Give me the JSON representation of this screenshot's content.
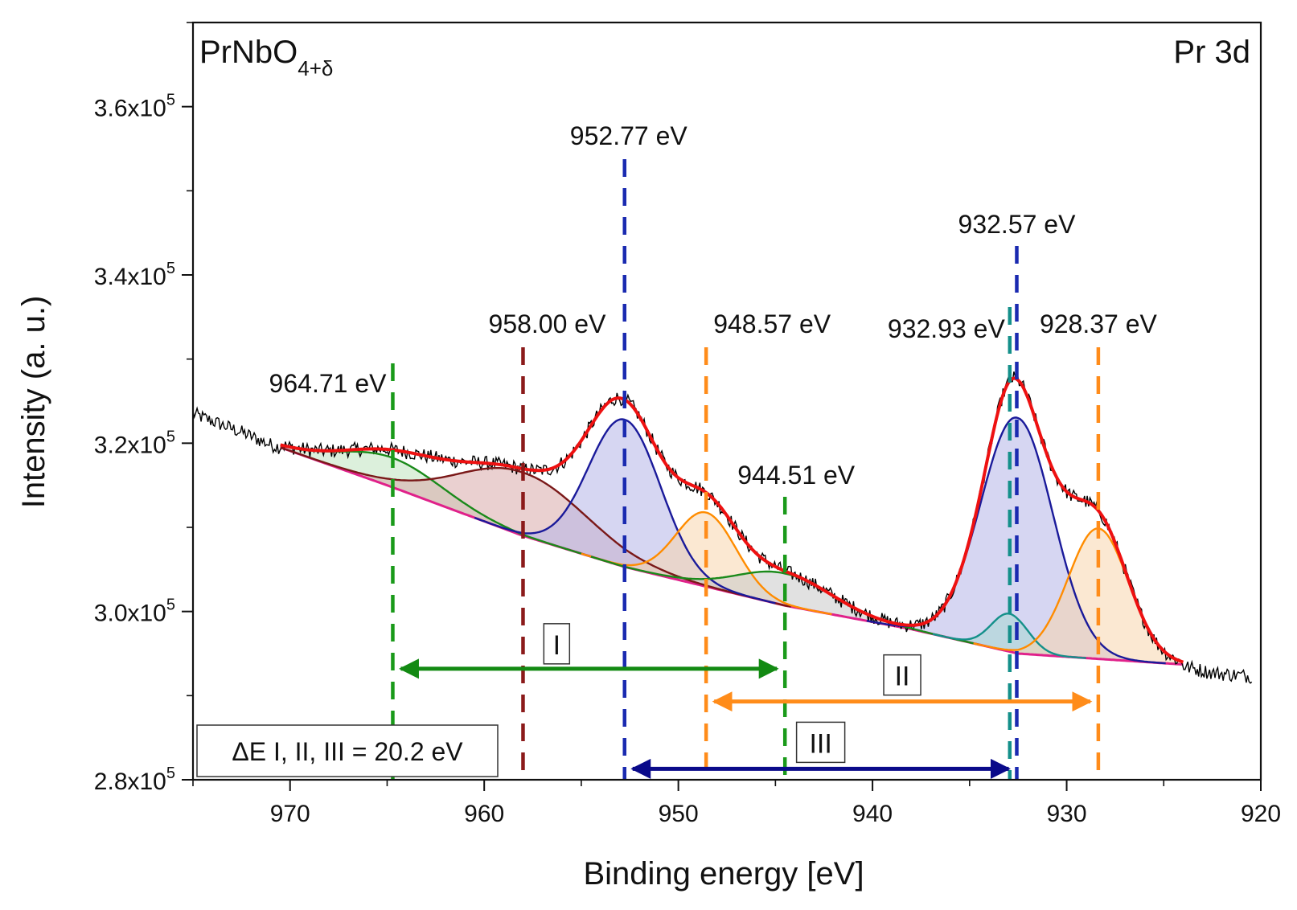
{
  "chart_data": {
    "type": "line",
    "sample_label": "PrNbO",
    "sample_subscript": "4+δ",
    "region_label": "Pr 3d",
    "xlabel": "Binding energy [eV]",
    "ylabel": "Intensity (a. u.)",
    "xlim": [
      975,
      920
    ],
    "ylim": [
      280000,
      370000
    ],
    "x_reversed": true,
    "x_ticks": [
      970,
      960,
      950,
      940,
      930,
      920
    ],
    "y_ticks": [
      {
        "value": 280000,
        "mantissa": "2.8x10",
        "exponent": "5"
      },
      {
        "value": 300000,
        "mantissa": "3.0x10",
        "exponent": "5"
      },
      {
        "value": 320000,
        "mantissa": "3.2x10",
        "exponent": "5"
      },
      {
        "value": 340000,
        "mantissa": "3.4x10",
        "exponent": "5"
      },
      {
        "value": 360000,
        "mantissa": "3.6x10",
        "exponent": "5"
      }
    ],
    "background": {
      "color": "#e0218a",
      "points": [
        [
          970.5,
          319500
        ],
        [
          965.0,
          315000
        ],
        [
          958.0,
          309000
        ],
        [
          952.77,
          305300
        ],
        [
          944.5,
          300700
        ],
        [
          938.0,
          297900
        ],
        [
          932.5,
          295000
        ],
        [
          924.0,
          293700
        ]
      ]
    },
    "components": [
      {
        "color": "#1a8a1a",
        "fill": "#bfe3bf",
        "center": 964.71,
        "height": 3500,
        "sigma": 2.6
      },
      {
        "color": "#7a1818",
        "fill": "#d9aaaa",
        "center": 958.0,
        "height": 7500,
        "sigma": 3.3
      },
      {
        "color": "#1a1a9a",
        "fill": "#b4b4e8",
        "center": 952.77,
        "height": 17500,
        "sigma": 1.85
      },
      {
        "color": "#ff8c00",
        "fill": "#f7d6ad",
        "center": 948.57,
        "height": 8800,
        "sigma": 1.55
      },
      {
        "color": "#1a8a1a",
        "fill": "#c9c9c9",
        "center": 944.51,
        "height": 3800,
        "sigma": 2.4
      },
      {
        "color": "#1a1a9a",
        "fill": "#b4b4e8",
        "center": 932.57,
        "height": 28000,
        "sigma": 1.85
      },
      {
        "color": "#14908a",
        "fill": "#a8d8d2",
        "center": 932.93,
        "height": 4500,
        "sigma": 0.95
      },
      {
        "color": "#ff8c00",
        "fill": "#f7d6ad",
        "center": 928.37,
        "height": 15500,
        "sigma": 1.55
      }
    ],
    "envelope_color": "#ee1111",
    "raw_color": "#000000",
    "raw_extra": [
      [
        975,
        323500
      ],
      [
        972.5,
        321300
      ],
      [
        971,
        319800
      ],
      [
        926.0,
        294500
      ],
      [
        924.0,
        293500
      ],
      [
        922.5,
        292700
      ],
      [
        920.5,
        292300
      ]
    ],
    "markers": [
      {
        "label": "964.71 eV",
        "x": 964.71,
        "color": "#1a9a1a"
      },
      {
        "label": "958.00 eV",
        "x": 958.0,
        "color": "#8b1a1a"
      },
      {
        "label": "952.77 eV",
        "x": 952.77,
        "color": "#1a2ab0"
      },
      {
        "label": "948.57 eV",
        "x": 948.57,
        "color": "#ff8c1a"
      },
      {
        "label": "944.51 eV",
        "x": 944.51,
        "color": "#1a9a1a"
      },
      {
        "label": "932.93 eV",
        "x": 932.93,
        "color": "#14908a"
      },
      {
        "label": "932.57 eV",
        "x": 932.57,
        "color": "#1a2ab0"
      },
      {
        "label": "928.37 eV",
        "x": 928.37,
        "color": "#ff8c1a"
      }
    ],
    "ranges": [
      {
        "label": "I",
        "from": 964.71,
        "to": 944.51,
        "y": 293200,
        "color": "#138a13"
      },
      {
        "label": "II",
        "from": 948.57,
        "to": 928.37,
        "y": 289300,
        "color": "#ff8c1a"
      },
      {
        "label": "III",
        "from": 952.77,
        "to": 932.57,
        "y": 281300,
        "color": "#0a0a8a"
      }
    ],
    "annotation": "ΔE I, II, III = 20.2 eV"
  }
}
